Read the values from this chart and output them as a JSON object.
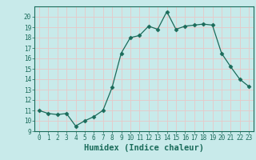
{
  "x": [
    0,
    1,
    2,
    3,
    4,
    5,
    6,
    7,
    8,
    9,
    10,
    11,
    12,
    13,
    14,
    15,
    16,
    17,
    18,
    19,
    20,
    21,
    22,
    23
  ],
  "y": [
    11,
    10.7,
    10.6,
    10.7,
    9.5,
    10.0,
    10.4,
    11.0,
    13.2,
    16.5,
    18.0,
    18.2,
    19.1,
    18.8,
    20.5,
    18.8,
    19.1,
    19.2,
    19.3,
    19.2,
    16.5,
    15.2,
    14.0,
    13.3
  ],
  "line_color": "#1a6b5a",
  "marker": "D",
  "marker_size": 2.5,
  "bg_color": "#c8eaea",
  "grid_color": "#e8c8c8",
  "xlabel": "Humidex (Indice chaleur)",
  "xlim": [
    -0.5,
    23.5
  ],
  "ylim": [
    9,
    21
  ],
  "yticks": [
    9,
    10,
    11,
    12,
    13,
    14,
    15,
    16,
    17,
    18,
    19,
    20
  ],
  "xticks": [
    0,
    1,
    2,
    3,
    4,
    5,
    6,
    7,
    8,
    9,
    10,
    11,
    12,
    13,
    14,
    15,
    16,
    17,
    18,
    19,
    20,
    21,
    22,
    23
  ],
  "tick_fontsize": 5.5,
  "label_fontsize": 7.5,
  "spine_color": "#1a6b5a"
}
